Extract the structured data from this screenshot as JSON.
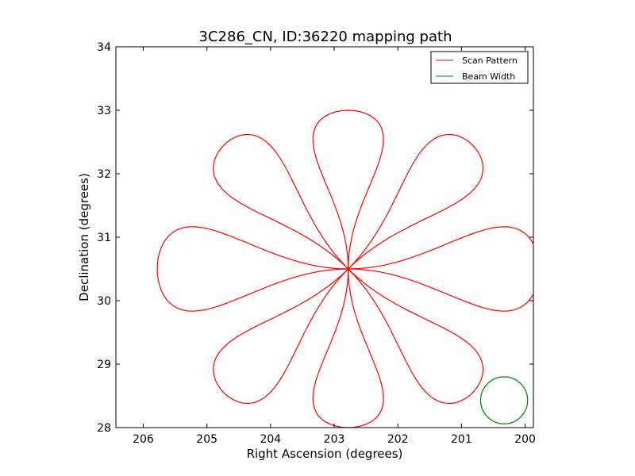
{
  "chart_data": {
    "type": "line",
    "title": "3C286_CN, ID:36220 mapping path",
    "xlabel": "Right Ascension (degrees)",
    "ylabel": "Declination (degrees)",
    "xlim": [
      206.43,
      199.87
    ],
    "ylim": [
      28,
      34
    ],
    "x_reversed": true,
    "xticks": [
      206,
      205,
      204,
      203,
      202,
      201,
      200
    ],
    "yticks": [
      28,
      29,
      30,
      31,
      32,
      33,
      34
    ],
    "grid": false,
    "legend_position": "top-right",
    "series": [
      {
        "name": "Scan Pattern",
        "color": "#ff0000",
        "pattern": "rose",
        "center": [
          202.78,
          30.5
        ],
        "petals": 8,
        "amplitude_ra": 3.0,
        "amplitude_dec": 2.5,
        "petal_widths": [
          0.36,
          0.3
        ]
      },
      {
        "name": "Beam Width",
        "color": "#008000",
        "pattern": "circle",
        "center": [
          200.33,
          28.43
        ],
        "radius_dec": 0.37
      }
    ]
  }
}
